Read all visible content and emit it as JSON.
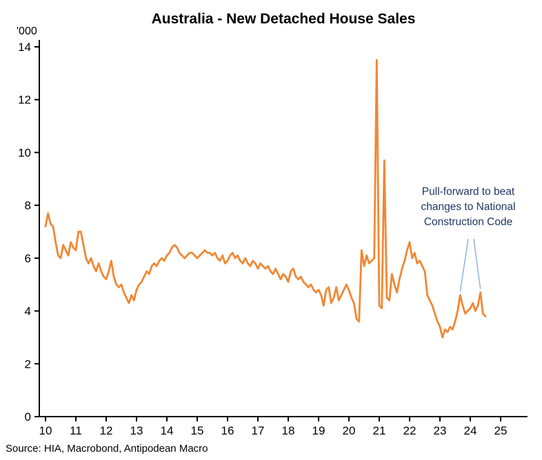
{
  "title": "Australia - New Detached House Sales",
  "unit_label": "'000",
  "source": "Source: HIA, Macrobond, Antipodean Macro",
  "annotation": {
    "lines": [
      "Pull-forward to beat",
      "changes to National",
      "Construction Code"
    ],
    "targets": [
      "2023-09",
      "2024-05"
    ],
    "text_color": "#1F3864",
    "arrow_color": "#7FA8DC"
  },
  "colors": {
    "line": "#F28733",
    "axis": "#000000",
    "tick_label": "#000000"
  },
  "chart_data": {
    "type": "line",
    "title": "Australia - New Detached House Sales",
    "xlabel": "",
    "ylabel": "'000",
    "ylim": [
      0,
      14
    ],
    "xlim": [
      2010,
      2025.9
    ],
    "grid": false,
    "legend": "none",
    "y_ticks": [
      0,
      2,
      4,
      6,
      8,
      10,
      12,
      14
    ],
    "x_ticks": [
      10,
      11,
      12,
      13,
      14,
      15,
      16,
      17,
      18,
      19,
      20,
      21,
      22,
      23,
      24,
      25
    ],
    "series": [
      {
        "name": "New detached house sales, monthly ('000)",
        "x_start": "2010-01",
        "x_interval": "month",
        "values": [
          7.2,
          7.7,
          7.3,
          7.2,
          6.6,
          6.1,
          6.0,
          6.5,
          6.3,
          6.1,
          6.6,
          6.4,
          6.3,
          7.0,
          7.0,
          6.5,
          6.0,
          5.8,
          6.0,
          5.7,
          5.5,
          5.8,
          5.5,
          5.3,
          5.2,
          5.5,
          5.9,
          5.3,
          5.0,
          4.9,
          5.0,
          4.7,
          4.5,
          4.3,
          4.6,
          4.4,
          4.8,
          5.0,
          5.1,
          5.3,
          5.5,
          5.4,
          5.7,
          5.8,
          5.7,
          5.9,
          6.0,
          5.9,
          6.1,
          6.2,
          6.4,
          6.5,
          6.4,
          6.2,
          6.1,
          6.0,
          6.1,
          6.2,
          6.2,
          6.1,
          6.0,
          6.1,
          6.2,
          6.3,
          6.2,
          6.2,
          6.1,
          6.2,
          6.0,
          5.9,
          6.1,
          5.8,
          5.9,
          6.1,
          6.2,
          6.0,
          6.1,
          5.9,
          5.8,
          6.0,
          5.8,
          5.7,
          5.9,
          5.8,
          5.6,
          5.8,
          5.7,
          5.6,
          5.7,
          5.5,
          5.4,
          5.6,
          5.4,
          5.2,
          5.4,
          5.3,
          5.1,
          5.5,
          5.6,
          5.3,
          5.2,
          5.3,
          5.1,
          5.0,
          4.9,
          5.0,
          4.8,
          4.7,
          4.8,
          4.6,
          4.2,
          4.8,
          4.9,
          4.3,
          4.5,
          4.9,
          4.4,
          4.6,
          4.8,
          5.0,
          4.8,
          4.5,
          4.3,
          3.7,
          3.6,
          6.3,
          5.7,
          6.1,
          5.8,
          5.9,
          6.0,
          13.5,
          4.2,
          4.1,
          9.7,
          4.5,
          4.4,
          5.4,
          5.0,
          4.7,
          5.2,
          5.6,
          5.9,
          6.3,
          6.6,
          6.0,
          6.2,
          5.8,
          5.9,
          5.7,
          5.5,
          4.6,
          4.4,
          4.2,
          3.9,
          3.6,
          3.4,
          3.0,
          3.3,
          3.2,
          3.4,
          3.3,
          3.6,
          4.0,
          4.6,
          4.2,
          3.9,
          4.0,
          4.1,
          4.3,
          4.0,
          4.2,
          4.7,
          3.9,
          3.8
        ]
      }
    ]
  }
}
